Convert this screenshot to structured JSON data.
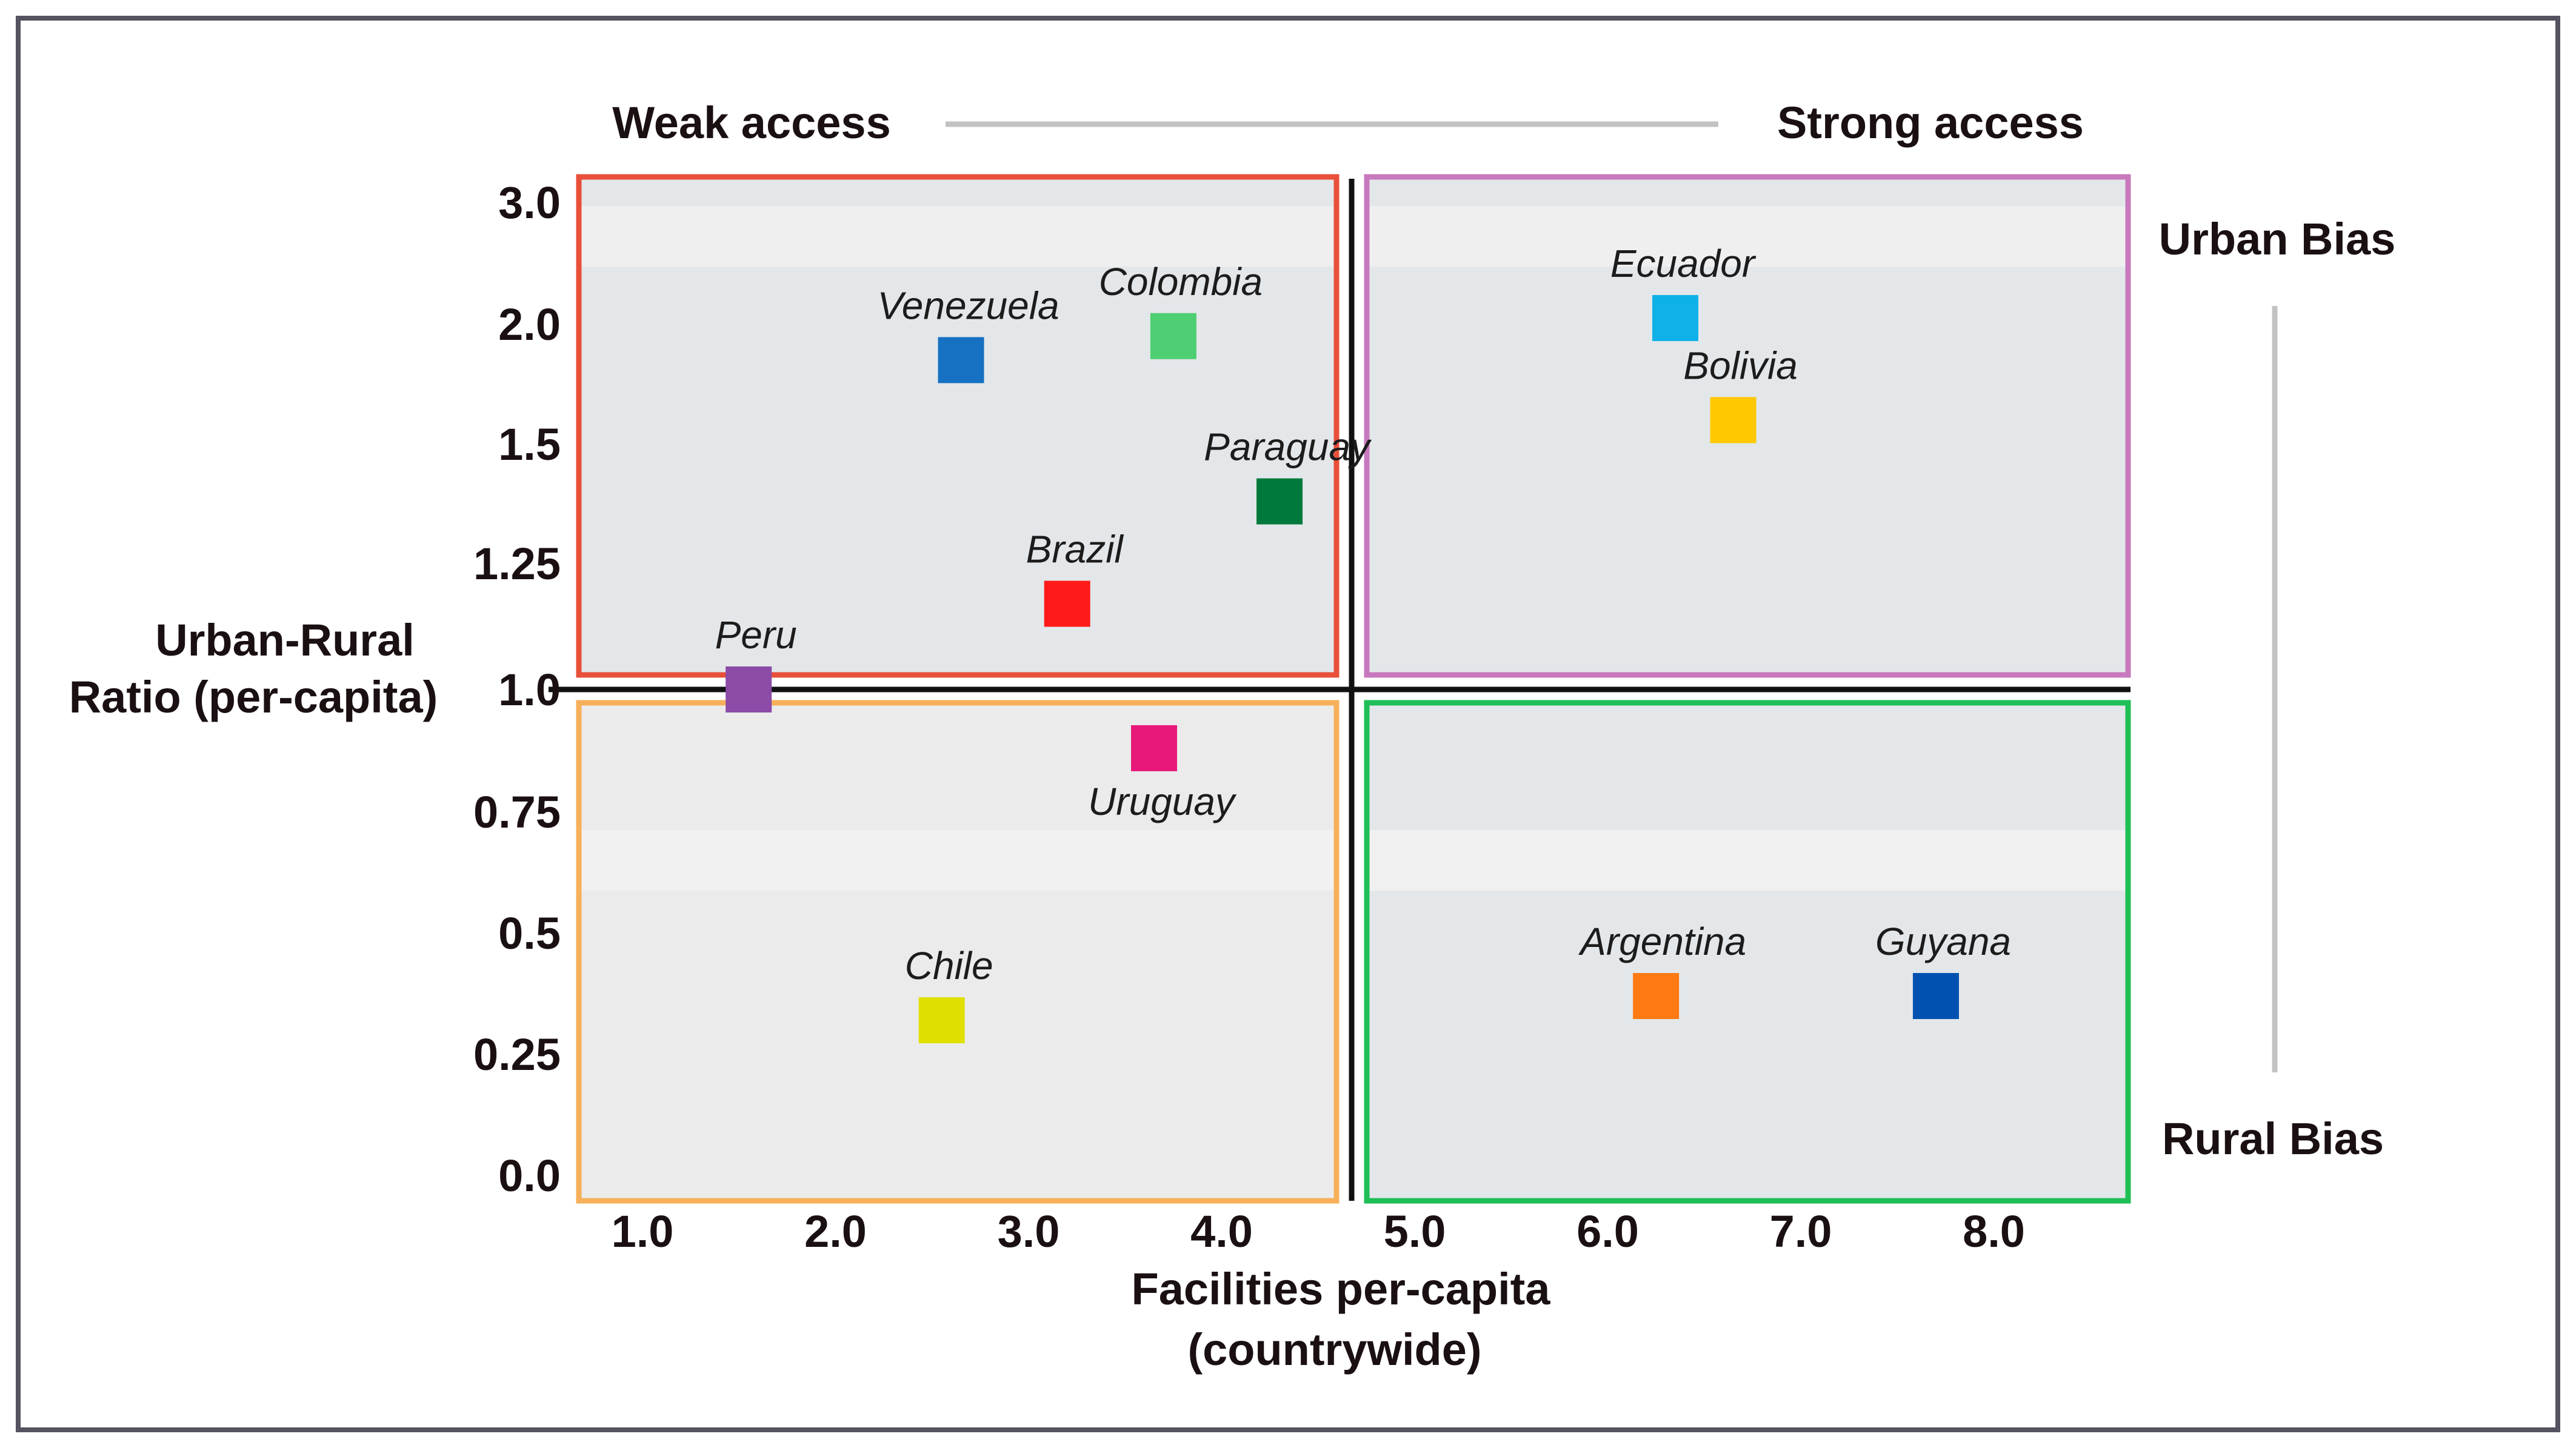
{
  "chart_data": {
    "type": "scatter",
    "title": "",
    "xlabel": [
      "Facilities per-capita",
      "(countrywide)"
    ],
    "ylabel": [
      "Urban-Rural",
      "Ratio (per-capita)"
    ],
    "xlim": [
      0.5,
      8.7
    ],
    "x_ticks": [
      "1.0",
      "2.0",
      "3.0",
      "4.0",
      "5.0",
      "6.0",
      "7.0",
      "8.0"
    ],
    "y_ticks": [
      "3.0",
      "2.0",
      "1.5",
      "1.25",
      "1.0",
      "0.75",
      "0.5",
      "0.25",
      "0.0"
    ],
    "y_scale_note": "non-linear tick spacing",
    "annotations": {
      "weak_access": "Weak access",
      "strong_access": "Strong access",
      "urban_bias": "Urban Bias",
      "rural_bias": "Rural Bias"
    },
    "quadrants": [
      {
        "name": "weak-access-urban-bias",
        "color": "#e8503a"
      },
      {
        "name": "strong-access-urban-bias",
        "color": "#c879be"
      },
      {
        "name": "weak-access-rural-bias",
        "color": "#f7b05a"
      },
      {
        "name": "strong-access-rural-bias",
        "color": "#1fbf55"
      }
    ],
    "points": [
      {
        "label": "Venezuela",
        "x": 2.65,
        "y": 1.85,
        "color": "#1771c2",
        "label_pos": "above"
      },
      {
        "label": "Colombia",
        "x": 3.75,
        "y": 1.95,
        "color": "#4fcf73",
        "label_pos": "above"
      },
      {
        "label": "Paraguay",
        "x": 4.3,
        "y": 1.38,
        "color": "#007a3c",
        "label_pos": "above"
      },
      {
        "label": "Brazil",
        "x": 3.2,
        "y": 1.17,
        "color": "#ff1a1a",
        "label_pos": "above"
      },
      {
        "label": "Peru",
        "x": 1.55,
        "y": 1.0,
        "color": "#8b4ba6",
        "label_pos": "above"
      },
      {
        "label": "Ecuador",
        "x": 6.35,
        "y": 2.05,
        "color": "#0eb1e8",
        "label_pos": "above"
      },
      {
        "label": "Bolivia",
        "x": 6.65,
        "y": 1.6,
        "color": "#ffc800",
        "label_pos": "above"
      },
      {
        "label": "Uruguay",
        "x": 3.65,
        "y": 0.88,
        "color": "#e8187a",
        "label_pos": "below"
      },
      {
        "label": "Chile",
        "x": 2.55,
        "y": 0.32,
        "color": "#dfe000",
        "label_pos": "above"
      },
      {
        "label": "Argentina",
        "x": 6.25,
        "y": 0.37,
        "color": "#ff7a12",
        "label_pos": "above"
      },
      {
        "label": "Guyana",
        "x": 7.7,
        "y": 0.37,
        "color": "#0051b0",
        "label_pos": "above"
      }
    ]
  }
}
